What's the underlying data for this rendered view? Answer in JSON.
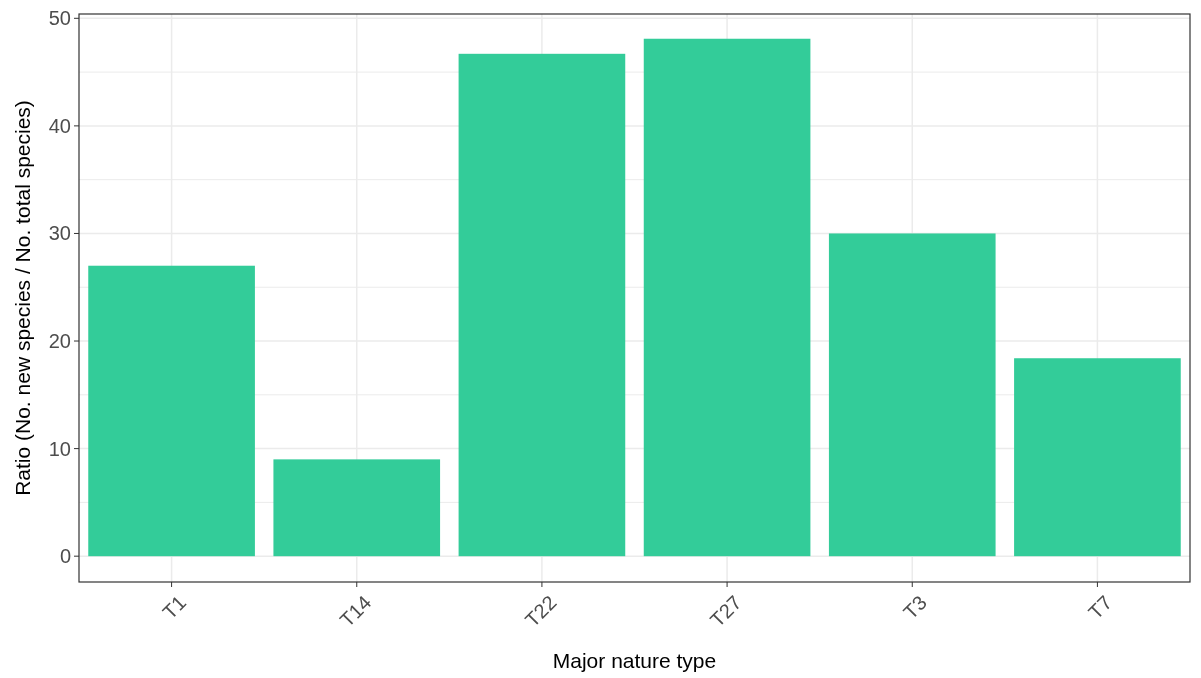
{
  "chart_data": {
    "type": "bar",
    "xlabel": "Major nature type",
    "ylabel": "Ratio (No. new species / No. total species)",
    "categories": [
      "T1",
      "T14",
      "T22",
      "T27",
      "T3",
      "T7"
    ],
    "values": [
      27,
      9,
      46.7,
      48.1,
      30,
      18.4
    ],
    "color": "#33cc99",
    "ylim": [
      -2.4,
      50.4
    ],
    "yticks": [
      0,
      10,
      20,
      30,
      40,
      50
    ],
    "grid": true
  }
}
